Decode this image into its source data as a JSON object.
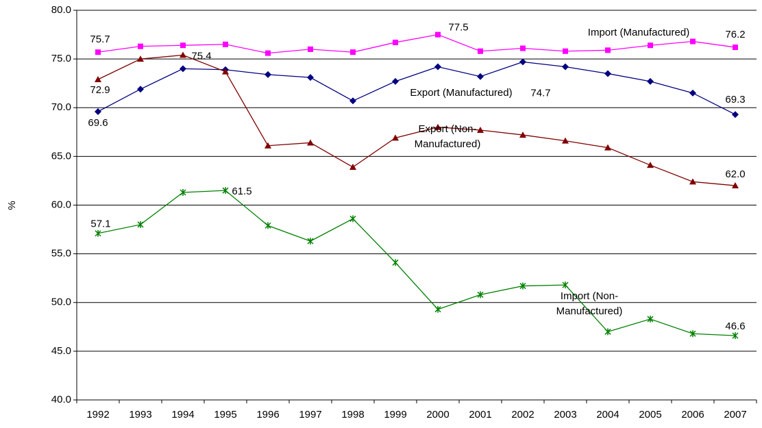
{
  "chart_data": {
    "type": "line",
    "y_label": "%",
    "categories": [
      "1992",
      "1993",
      "1994",
      "1995",
      "1996",
      "1997",
      "1998",
      "1999",
      "2000",
      "2001",
      "2002",
      "2003",
      "2004",
      "2005",
      "2006",
      "2007"
    ],
    "ylim": [
      40,
      80
    ],
    "yticks": [
      {
        "value": 40,
        "label": "40.0"
      },
      {
        "value": 45,
        "label": "45.0"
      },
      {
        "value": 50,
        "label": "50.0"
      },
      {
        "value": 55,
        "label": "55.0"
      },
      {
        "value": 60,
        "label": "60.0"
      },
      {
        "value": 65,
        "label": "65.0"
      },
      {
        "value": 70,
        "label": "70.0"
      },
      {
        "value": 75,
        "label": "75.0"
      },
      {
        "value": 80,
        "label": "80.0"
      }
    ],
    "grid": true,
    "series": [
      {
        "name": "Import (Manufactured)",
        "color": "#ff00ff",
        "marker": "square",
        "values": [
          75.7,
          76.3,
          76.4,
          76.5,
          75.6,
          76.0,
          75.7,
          76.7,
          77.5,
          75.8,
          76.1,
          75.8,
          75.9,
          76.4,
          76.8,
          76.2
        ],
        "value_labels": [
          "75.7",
          null,
          null,
          null,
          null,
          null,
          null,
          null,
          "77.5",
          null,
          null,
          null,
          null,
          null,
          null,
          "76.2"
        ]
      },
      {
        "name": "Export (Manufactured)",
        "color": "#000080",
        "marker": "diamond",
        "values": [
          69.6,
          71.9,
          74.0,
          73.9,
          73.4,
          73.1,
          70.7,
          72.7,
          74.2,
          73.2,
          74.7,
          74.2,
          73.5,
          72.7,
          71.5,
          69.3
        ],
        "value_labels": [
          "69.6",
          null,
          null,
          null,
          null,
          null,
          null,
          null,
          null,
          null,
          "74.7",
          null,
          null,
          null,
          null,
          "69.3"
        ]
      },
      {
        "name": "Export (Non-Manufactured)",
        "color": "#800000",
        "marker": "triangle",
        "values": [
          72.9,
          75.0,
          75.4,
          73.7,
          66.1,
          66.4,
          63.9,
          66.9,
          68.0,
          67.7,
          67.2,
          66.6,
          65.9,
          64.1,
          62.4,
          62.0
        ],
        "value_labels": [
          "72.9",
          null,
          "75.4",
          null,
          null,
          null,
          null,
          null,
          null,
          null,
          null,
          null,
          null,
          null,
          null,
          "62.0"
        ]
      },
      {
        "name": "Import (Non-Manufactured)",
        "color": "#008000",
        "marker": "asterisk",
        "values": [
          57.1,
          58.0,
          61.3,
          61.5,
          57.9,
          56.3,
          58.6,
          54.1,
          49.3,
          50.8,
          51.7,
          51.8,
          47.0,
          48.3,
          46.8,
          46.6
        ],
        "value_labels": [
          "57.1",
          null,
          null,
          "61.5",
          null,
          null,
          null,
          null,
          null,
          null,
          null,
          null,
          null,
          null,
          null,
          "46.6"
        ]
      }
    ]
  }
}
